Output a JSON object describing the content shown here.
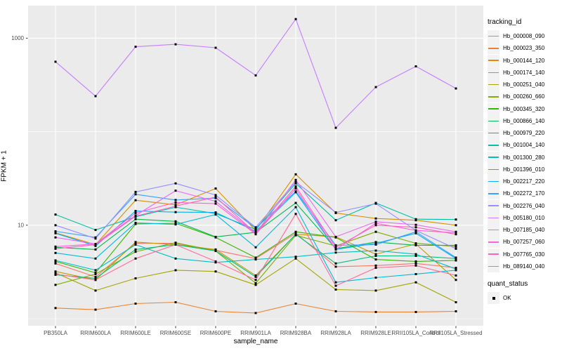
{
  "chart_data": {
    "type": "line",
    "title": "",
    "xlabel": "sample_name",
    "ylabel": "FPKM + 1",
    "y_scale": "log10",
    "y_major_ticks": [
      10,
      1000
    ],
    "y_minor_gridlines": [
      1,
      100
    ],
    "grid": true,
    "legend_position": "right",
    "point_shape": "small-black-square",
    "categories": [
      "PB350LA",
      "RRIM600LA",
      "RRIM600LE",
      "RRIM600SE",
      "RRIM600PE",
      "RRIM901LA",
      "RRIM928BA",
      "RRIM928LA",
      "RRIM928LE",
      "RRII105LA_Control",
      "RRII105LA_Stressed"
    ],
    "series": [
      {
        "name": "Hb_000008_090",
        "color": "#F8766D",
        "values": [
          3.9,
          2.8,
          6.4,
          6.4,
          5.4,
          4.4,
          8.2,
          3.6,
          3.7,
          3.9,
          3.5
        ]
      },
      {
        "name": "Hb_000023_350",
        "color": "#EA8331",
        "values": [
          1.3,
          1.25,
          1.45,
          1.5,
          1.2,
          1.15,
          1.45,
          1.2,
          1.18,
          1.18,
          1.2
        ]
      },
      {
        "name": "Hb_000144_120",
        "color": "#D89000",
        "values": [
          8.3,
          6.2,
          18.5,
          16.5,
          24.7,
          8.8,
          35.0,
          13.5,
          11.8,
          11.3,
          10.0
        ]
      },
      {
        "name": "Hb_000174_140",
        "color": "#C09B00",
        "values": [
          3.2,
          2.6,
          6.6,
          6.2,
          5.5,
          2.9,
          8.0,
          7.5,
          4.9,
          6.3,
          2.6
        ]
      },
      {
        "name": "Hb_000251_040",
        "color": "#A3A500",
        "values": [
          3.1,
          2.0,
          2.7,
          3.3,
          3.2,
          2.3,
          4.4,
          2.05,
          2.0,
          2.45,
          1.5
        ]
      },
      {
        "name": "Hb_000260_660",
        "color": "#7CAE00",
        "values": [
          2.3,
          3.0,
          5.2,
          6.5,
          5.3,
          2.4,
          7.8,
          6.0,
          8.5,
          6.4,
          5.9
        ]
      },
      {
        "name": "Hb_000345_320",
        "color": "#39B600",
        "values": [
          4.1,
          3.1,
          10.3,
          10.5,
          7.4,
          4.5,
          8.5,
          7.4,
          4.3,
          4.1,
          4.2
        ]
      },
      {
        "name": "Hb_000866_140",
        "color": "#00BB4E",
        "values": [
          5.8,
          5.5,
          11.6,
          11.0,
          7.5,
          8.4,
          17.3,
          5.6,
          6.6,
          6.1,
          6.1
        ]
      },
      {
        "name": "Hb_000979_220",
        "color": "#00BF7D",
        "values": [
          2.95,
          2.7,
          5.5,
          6.2,
          5.3,
          2.8,
          8.0,
          3.9,
          4.7,
          4.7,
          4.4
        ]
      },
      {
        "name": "Hb_001004_140",
        "color": "#00C1A3",
        "values": [
          13.0,
          8.9,
          12.3,
          15.6,
          13.3,
          9.0,
          28.0,
          11.3,
          17.3,
          11.6,
          11.5
        ]
      },
      {
        "name": "Hb_001300_280",
        "color": "#00BFC4",
        "values": [
          4.2,
          3.3,
          6.2,
          4.4,
          4.0,
          4.3,
          4.6,
          5.1,
          5.35,
          4.9,
          3.4
        ]
      },
      {
        "name": "Hb_001396_010",
        "color": "#00BADE",
        "values": [
          5.05,
          4.4,
          10.6,
          10.2,
          13.0,
          5.8,
          15.6,
          2.45,
          2.75,
          3.0,
          3.3
        ]
      },
      {
        "name": "Hb_002217_220",
        "color": "#00B0F6",
        "values": [
          8.2,
          6.0,
          14.2,
          13.8,
          13.7,
          8.6,
          22.5,
          5.5,
          6.4,
          8.2,
          4.4
        ]
      },
      {
        "name": "Hb_002272_170",
        "color": "#35A2FF",
        "values": [
          8.6,
          7.4,
          21.4,
          18.6,
          19.5,
          9.3,
          23.0,
          6.1,
          6.2,
          8.5,
          4.5
        ]
      },
      {
        "name": "Hb_002276_040",
        "color": "#9590FF",
        "values": [
          10.0,
          7.2,
          22.7,
          28.0,
          21.0,
          9.5,
          29.0,
          13.7,
          17.0,
          8.8,
          5.6
        ]
      },
      {
        "name": "Hb_005180_010",
        "color": "#C77CFF",
        "values": [
          560,
          240,
          810,
          860,
          790,
          400,
          1600,
          110,
          300,
          500,
          290
        ]
      },
      {
        "name": "Hb_007185_040",
        "color": "#E76BF3",
        "values": [
          7.4,
          6.3,
          12.7,
          23.4,
          18.0,
          8.2,
          30.5,
          7.5,
          10.9,
          10.1,
          8.5
        ]
      },
      {
        "name": "Hb_007257_060",
        "color": "#FA62DB",
        "values": [
          5.9,
          6.3,
          13.5,
          17.5,
          17.0,
          8.0,
          24.7,
          5.5,
          10.5,
          8.8,
          8.3
        ]
      },
      {
        "name": "Hb_007765_030",
        "color": "#FF62BC",
        "values": [
          5.6,
          6.2,
          12.5,
          16.0,
          20.0,
          8.2,
          26.0,
          5.8,
          10.0,
          9.5,
          8.0
        ]
      },
      {
        "name": "Hb_089140_040",
        "color": "#FF6A98",
        "values": [
          3.0,
          2.6,
          4.4,
          6.2,
          4.1,
          2.6,
          13.2,
          2.25,
          3.5,
          3.7,
          2.9
        ]
      }
    ],
    "legend": {
      "tracking_title": "tracking_id",
      "quant_title": "quant_status",
      "quant_items": [
        {
          "label": "OK"
        }
      ]
    }
  },
  "colors": {
    "panel_bg": "#EBEBEB",
    "grid": "#FFFFFF",
    "legend_key_bg": "#F2F2F2",
    "tick_text": "#4D4D4D",
    "axis_title_text": "#000000",
    "point": "#000000",
    "background": "#FFFFFF"
  }
}
